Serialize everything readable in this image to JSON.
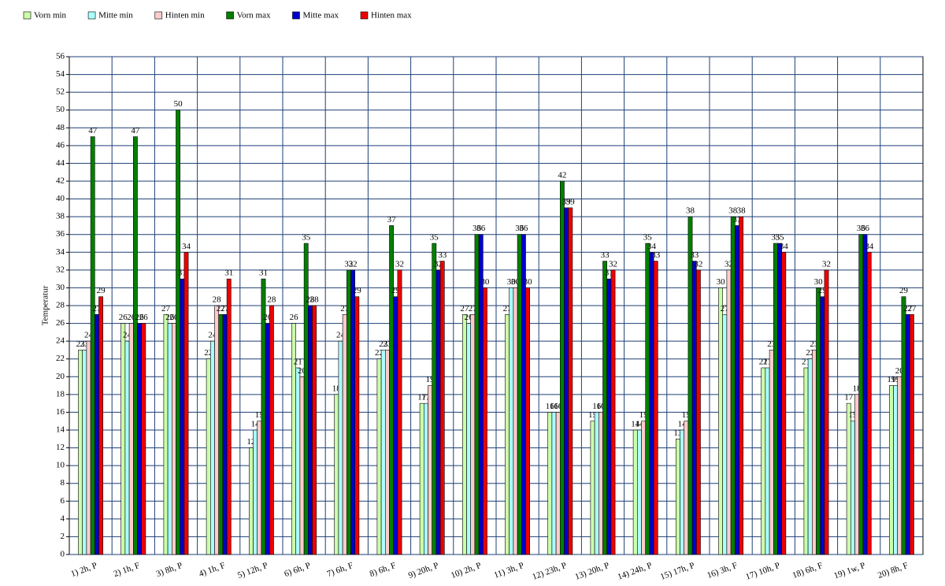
{
  "chart_data": {
    "type": "bar",
    "y_label": "Temperatur",
    "legend": "top-left",
    "grid": true,
    "categories": [
      "1) 2h, P",
      "2) 1h, F",
      "3) 8h, P",
      "4) 1h, F",
      "5) 12h, P",
      "6) 6h, P",
      "7) 6h, F",
      "8) 6h, F",
      "9) 20h, P",
      "10) 2h, P",
      "11) 3h, P",
      "12) 23h, P",
      "13) 20h, P",
      "14) 24h, P",
      "15) 17h, P",
      "16) 3h, F",
      "17) 10h, P",
      "18) 6h, F",
      "19) 1w, P",
      "20) 8h, F"
    ],
    "series": [
      {
        "name": "Vorn min",
        "color": "#ccffaa",
        "values": [
          23,
          26,
          27,
          22,
          12,
          26,
          18,
          22,
          17,
          27,
          27,
          16,
          15,
          14,
          13,
          30,
          21,
          21,
          17,
          19
        ]
      },
      {
        "name": "Mitte min",
        "color": "#aaffff",
        "values": [
          23,
          24,
          26,
          24,
          14,
          21,
          24,
          23,
          17,
          26,
          30,
          16,
          16,
          14,
          14,
          27,
          21,
          22,
          15,
          19
        ]
      },
      {
        "name": "Hinten min",
        "color": "#ffcccc",
        "values": [
          24,
          26,
          26,
          28,
          15,
          20,
          27,
          23,
          19,
          27,
          30,
          16,
          16,
          15,
          15,
          32,
          23,
          23,
          18,
          20
        ]
      },
      {
        "name": "Vorn max",
        "color": "#008000",
        "values": [
          47,
          47,
          50,
          27,
          31,
          35,
          32,
          37,
          35,
          36,
          36,
          42,
          33,
          35,
          38,
          38,
          35,
          30,
          36,
          29
        ]
      },
      {
        "name": "Mitte max",
        "color": "#0000cc",
        "values": [
          27,
          26,
          31,
          27,
          26,
          28,
          32,
          29,
          32,
          36,
          36,
          39,
          31,
          34,
          33,
          37,
          35,
          29,
          36,
          27
        ]
      },
      {
        "name": "Hinten max",
        "color": "#ee0000",
        "values": [
          29,
          26,
          34,
          31,
          28,
          28,
          29,
          32,
          33,
          30,
          30,
          39,
          32,
          33,
          32,
          38,
          34,
          32,
          34,
          27
        ]
      }
    ],
    "ylim": [
      0,
      56
    ],
    "yticks": [
      0,
      2,
      4,
      6,
      8,
      10,
      12,
      14,
      16,
      18,
      20,
      22,
      24,
      26,
      28,
      30,
      32,
      34,
      36,
      38,
      40,
      42,
      44,
      46,
      48,
      50,
      52,
      54,
      56
    ]
  }
}
